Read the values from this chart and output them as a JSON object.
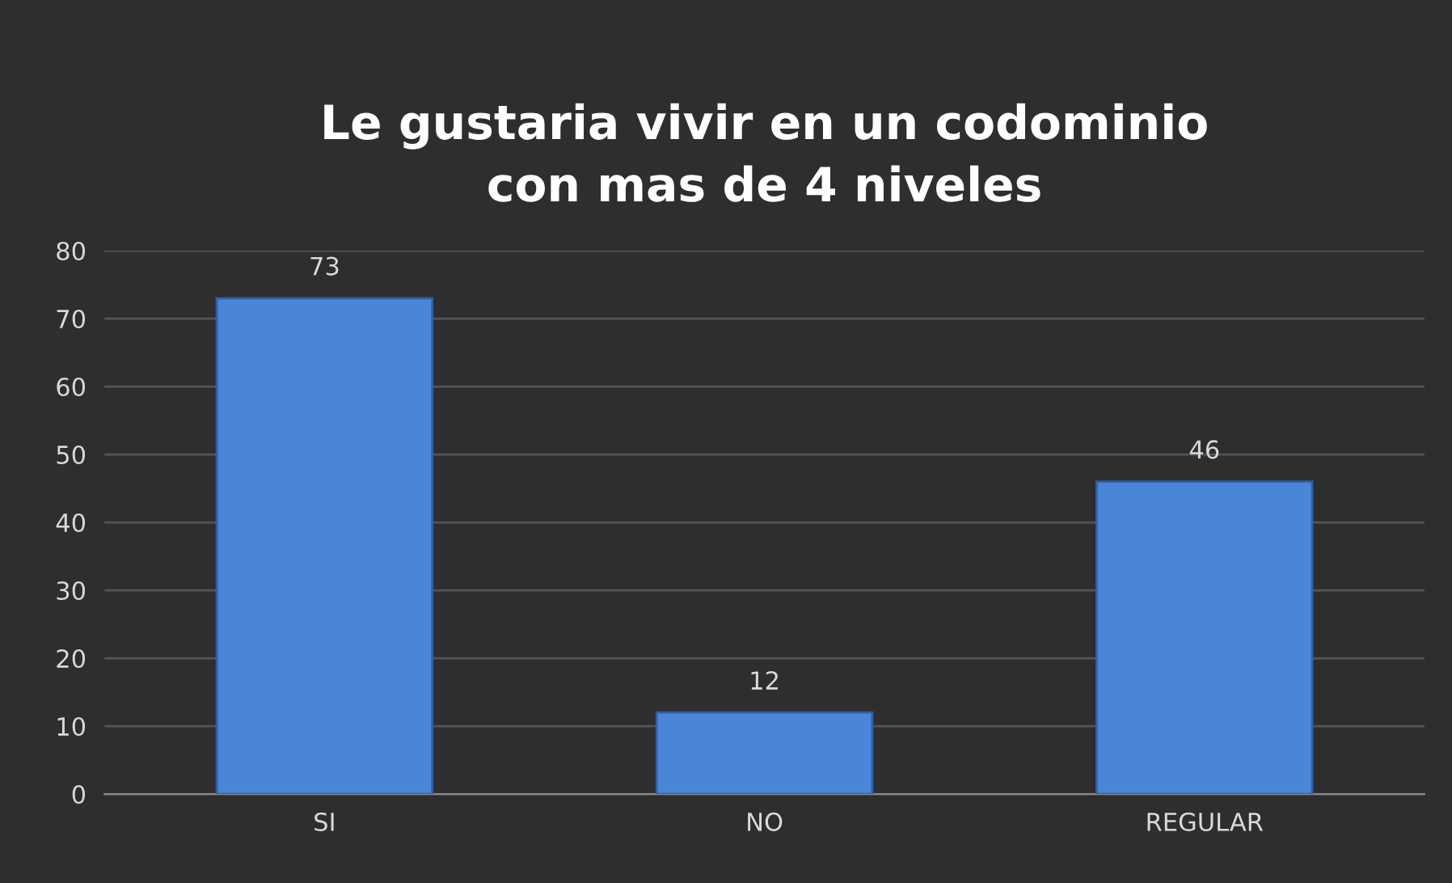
{
  "chart_data": {
    "type": "bar",
    "title": "Le gustaria vivir en un codominio\ncon mas de 4 niveles",
    "categories": [
      "SI",
      "NO",
      "REGULAR"
    ],
    "values": [
      73,
      12,
      46
    ],
    "color": "#4a86d8",
    "ylim": [
      0,
      80
    ],
    "yticks": [
      0,
      10,
      20,
      30,
      40,
      50,
      60,
      70,
      80
    ],
    "grid": "y",
    "data_labels": true
  }
}
